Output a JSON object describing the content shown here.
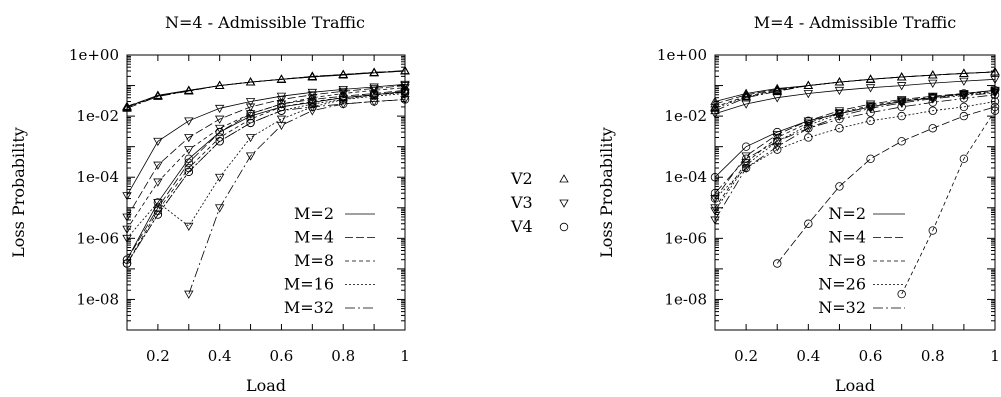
{
  "chart_data": [
    {
      "type": "line",
      "title": "N=4 - Admissible Traffic",
      "xlabel": "Load",
      "ylabel": "Loss Probability",
      "xlim": [
        0.1,
        1.0
      ],
      "ylim": [
        1e-09,
        1
      ],
      "yscale": "log",
      "xticks": [
        0.2,
        0.4,
        0.6,
        0.8,
        1.0
      ],
      "xtick_labels": [
        "0.2",
        "0.4",
        "0.6",
        "0.8",
        "1"
      ],
      "yticks": [
        1,
        0.01,
        0.0001,
        1e-06,
        1e-08
      ],
      "ytick_labels": [
        "1e+00",
        "1e-02",
        "1e-04",
        "1e-06",
        "1e-08"
      ],
      "legend_position": "bottom-right",
      "x": [
        0.1,
        0.2,
        0.3,
        0.4,
        0.5,
        0.6,
        0.7,
        0.8,
        0.9,
        1.0
      ],
      "series": [
        {
          "name": "M=2",
          "dash": "",
          "curves": [
            {
              "marker": "V2",
              "values": [
                0.02,
                0.048,
                0.07,
                0.1,
                0.13,
                0.16,
                0.19,
                0.22,
                0.26,
                0.3
              ]
            },
            {
              "marker": "V3",
              "values": [
                2.5e-05,
                0.0015,
                0.007,
                0.018,
                0.03,
                0.045,
                0.06,
                0.075,
                0.09,
                0.11
              ]
            },
            {
              "marker": "V4",
              "values": [
                2e-07,
                1.5e-05,
                0.0004,
                0.003,
                0.01,
                0.02,
                0.028,
                0.04,
                0.05,
                0.065
              ]
            }
          ]
        },
        {
          "name": "M=4",
          "dash": "8,3",
          "curves": [
            {
              "marker": "V2",
              "values": [
                0.021,
                0.047,
                0.069,
                0.1,
                0.13,
                0.16,
                0.19,
                0.23,
                0.26,
                0.3
              ]
            },
            {
              "marker": "V3",
              "values": [
                5e-06,
                0.00025,
                0.002,
                0.008,
                0.02,
                0.035,
                0.05,
                0.065,
                0.08,
                0.1
              ]
            },
            {
              "marker": "V4",
              "values": [
                2e-07,
                1e-05,
                0.0003,
                0.003,
                0.012,
                0.025,
                0.035,
                0.045,
                0.055,
                0.07
              ]
            }
          ]
        },
        {
          "name": "M=8",
          "dash": "4,3",
          "curves": [
            {
              "marker": "V2",
              "values": [
                0.02,
                0.046,
                0.068,
                0.1,
                0.13,
                0.16,
                0.2,
                0.23,
                0.27,
                0.3
              ]
            },
            {
              "marker": "V3",
              "values": [
                2e-06,
                7e-05,
                0.0008,
                0.004,
                0.012,
                0.025,
                0.04,
                0.055,
                0.07,
                0.085
              ]
            },
            {
              "marker": "V4",
              "values": [
                1.5e-07,
                8e-06,
                0.0002,
                0.002,
                0.008,
                0.02,
                0.03,
                0.04,
                0.05,
                0.06
              ]
            }
          ]
        },
        {
          "name": "M=16",
          "dash": "2,2",
          "curves": [
            {
              "marker": "V2",
              "values": [
                0.019,
                0.045,
                0.067,
                0.1,
                0.13,
                0.16,
                0.2,
                0.23,
                0.27,
                0.3
              ]
            },
            {
              "marker": "V3",
              "values": [
                1e-06,
                1.5e-05,
                2.5e-06,
                0.0001,
                0.002,
                0.008,
                0.02,
                0.035,
                0.05,
                0.06
              ]
            },
            {
              "marker": "V4",
              "values": [
                1.5e-07,
                6e-06,
                0.00015,
                0.0015,
                0.006,
                0.015,
                0.025,
                0.035,
                0.045,
                0.055
              ]
            }
          ]
        },
        {
          "name": "M=32",
          "dash": "10,3,2,3",
          "curves": [
            {
              "marker": "V2",
              "values": [
                0.018,
                0.044,
                0.066,
                0.1,
                0.13,
                0.16,
                0.2,
                0.23,
                0.27,
                0.31
              ]
            },
            {
              "marker": "V3",
              "values": [
                null,
                null,
                1.5e-08,
                1e-05,
                0.0005,
                0.005,
                0.015,
                0.025,
                0.03,
                0.035
              ]
            },
            {
              "marker": "V4",
              "values": [
                1.5e-07,
                6e-06,
                0.00015,
                0.0015,
                0.006,
                0.015,
                0.02,
                0.025,
                0.03,
                0.035
              ]
            }
          ]
        }
      ]
    },
    {
      "type": "line",
      "title": "M=4 - Admissible Traffic",
      "xlabel": "Load",
      "ylabel": "Loss Probability",
      "xlim": [
        0.1,
        1.0
      ],
      "ylim": [
        1e-09,
        1
      ],
      "yscale": "log",
      "xticks": [
        0.2,
        0.4,
        0.6,
        0.8,
        1.0
      ],
      "xtick_labels": [
        "0.2",
        "0.4",
        "0.6",
        "0.8",
        "1"
      ],
      "yticks": [
        1,
        0.01,
        0.0001,
        1e-06,
        1e-08
      ],
      "ytick_labels": [
        "1e+00",
        "1e-02",
        "1e-04",
        "1e-06",
        "1e-08"
      ],
      "legend_position": "bottom-right",
      "x": [
        0.1,
        0.2,
        0.3,
        0.4,
        0.5,
        0.6,
        0.7,
        0.8,
        0.9,
        1.0
      ],
      "series": [
        {
          "name": "N=2",
          "dash": "",
          "curves": [
            {
              "marker": "V2",
              "values": [
                0.03,
                0.055,
                0.08,
                0.1,
                0.13,
                0.16,
                0.19,
                0.22,
                0.25,
                0.28
              ]
            },
            {
              "marker": "V3",
              "values": [
                0.012,
                0.025,
                0.04,
                0.055,
                0.07,
                0.085,
                0.1,
                0.12,
                0.14,
                0.16
              ]
            },
            {
              "marker": "V4",
              "values": [
                0.0001,
                0.001,
                0.003,
                0.007,
                0.012,
                0.02,
                0.03,
                0.04,
                0.055,
                0.07
              ]
            }
          ]
        },
        {
          "name": "N=4",
          "dash": "8,3",
          "curves": [
            {
              "marker": "V2",
              "values": [
                0.025,
                0.05,
                0.075,
                0.1,
                0.13,
                0.16,
                0.19,
                0.22,
                0.25,
                0.28
              ]
            },
            {
              "marker": "V3",
              "values": [
                2e-05,
                0.0005,
                0.0025,
                0.007,
                0.015,
                0.025,
                0.035,
                0.045,
                0.055,
                0.07
              ]
            },
            {
              "marker": "V4",
              "values": [
                null,
                null,
                1.5e-07,
                3e-06,
                5e-05,
                0.0004,
                0.0015,
                0.004,
                0.01,
                0.02
              ]
            }
          ]
        },
        {
          "name": "N=8",
          "dash": "4,3",
          "curves": [
            {
              "marker": "V2",
              "values": [
                0.02,
                0.045,
                0.07,
                0.1,
                0.13,
                0.16,
                0.19,
                0.22,
                0.25,
                0.28
              ]
            },
            {
              "marker": "V3",
              "values": [
                1e-05,
                0.0003,
                0.002,
                0.006,
                0.013,
                0.022,
                0.032,
                0.042,
                0.052,
                0.065
              ]
            },
            {
              "marker": "V4",
              "values": [
                null,
                null,
                null,
                null,
                null,
                null,
                1.5e-08,
                1.8e-06,
                0.0004,
                0.015
              ]
            }
          ]
        },
        {
          "name": "N=26",
          "dash": "2,2",
          "curves": [
            {
              "marker": "V2",
              "values": [
                0.018,
                0.043,
                0.068,
                0.1,
                0.13,
                0.16,
                0.19,
                0.22,
                0.25,
                0.28
              ]
            },
            {
              "marker": "V3",
              "values": [
                8e-06,
                0.00025,
                0.0015,
                0.005,
                0.012,
                0.02,
                0.03,
                0.04,
                0.05,
                0.06
              ]
            },
            {
              "marker": "V4",
              "values": [
                2e-05,
                0.0002,
                0.0008,
                0.002,
                0.004,
                0.007,
                0.01,
                0.015,
                0.02,
                0.03
              ]
            }
          ]
        },
        {
          "name": "N=32",
          "dash": "10,3,2,3",
          "curves": [
            {
              "marker": "V2",
              "values": [
                0.015,
                0.04,
                0.065,
                0.1,
                0.13,
                0.16,
                0.19,
                0.22,
                0.25,
                0.28
              ]
            },
            {
              "marker": "V3",
              "values": [
                4e-06,
                0.0002,
                0.001,
                0.004,
                0.01,
                0.018,
                0.027,
                0.037,
                0.047,
                0.057
              ]
            },
            {
              "marker": "V4",
              "values": [
                3e-05,
                0.0004,
                0.0015,
                0.004,
                0.008,
                0.013,
                0.02,
                0.028,
                0.038,
                0.05
              ]
            }
          ]
        }
      ]
    }
  ],
  "marker_legend": [
    {
      "label": "V2",
      "symbol": "triangle-up"
    },
    {
      "label": "V3",
      "symbol": "triangle-down"
    },
    {
      "label": "V4",
      "symbol": "circle"
    }
  ]
}
